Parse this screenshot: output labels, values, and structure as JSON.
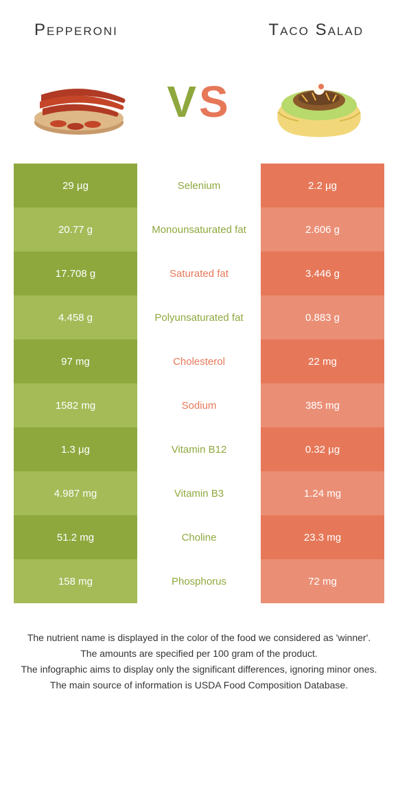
{
  "header": {
    "left_title": "Pepperoni",
    "right_title": "Taco Salad"
  },
  "vs": {
    "v": "V",
    "s": "S"
  },
  "colors": {
    "left_dark": "#8ea83e",
    "left_light": "#a4bb58",
    "right_dark": "#e67859",
    "right_light": "#ea8f76",
    "mid_label_left": "#8ea83e",
    "mid_label_right": "#e67859",
    "background": "#ffffff"
  },
  "rows": [
    {
      "nutrient": "Selenium",
      "left": "29 µg",
      "right": "2.2 µg",
      "winner": "left"
    },
    {
      "nutrient": "Monounsaturated fat",
      "left": "20.77 g",
      "right": "2.606 g",
      "winner": "left"
    },
    {
      "nutrient": "Saturated fat",
      "left": "17.708 g",
      "right": "3.446 g",
      "winner": "right"
    },
    {
      "nutrient": "Polyunsaturated fat",
      "left": "4.458 g",
      "right": "0.883 g",
      "winner": "left"
    },
    {
      "nutrient": "Cholesterol",
      "left": "97 mg",
      "right": "22 mg",
      "winner": "right"
    },
    {
      "nutrient": "Sodium",
      "left": "1582 mg",
      "right": "385 mg",
      "winner": "right"
    },
    {
      "nutrient": "Vitamin B12",
      "left": "1.3 µg",
      "right": "0.32 µg",
      "winner": "left"
    },
    {
      "nutrient": "Vitamin B3",
      "left": "4.987 mg",
      "right": "1.24 mg",
      "winner": "left"
    },
    {
      "nutrient": "Choline",
      "left": "51.2 mg",
      "right": "23.3 mg",
      "winner": "left"
    },
    {
      "nutrient": "Phosphorus",
      "left": "158 mg",
      "right": "72 mg",
      "winner": "left"
    }
  ],
  "footer": {
    "line1": "The nutrient name is displayed in the color of the food we considered as 'winner'.",
    "line2": "The amounts are specified per 100 gram of the product.",
    "line3": "The infographic aims to display only the significant differences, ignoring minor ones.",
    "line4": "The main source of information is USDA Food Composition Database."
  }
}
